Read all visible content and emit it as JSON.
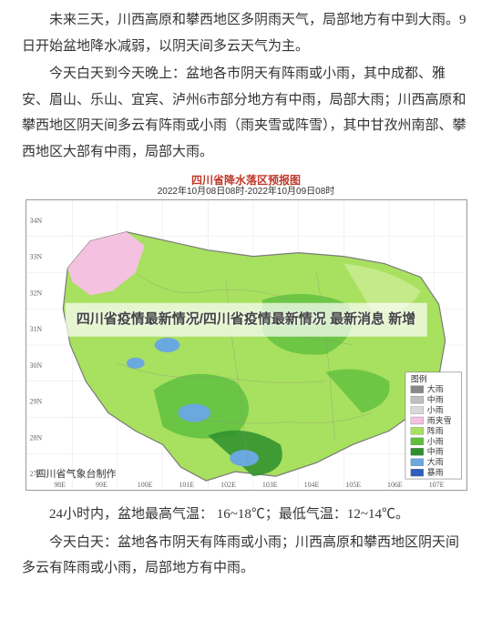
{
  "paragraphs": {
    "p1": "未来三天，川西高原和攀西地区多阴雨天气，局部地方有中到大雨。9日开始盆地降水减弱，以阴天间多云天气为主。",
    "p2": "今天白天到今天晚上：盆地各市阴天有阵雨或小雨，其中成都、雅安、眉山、乐山、宜宾、泸州6市部分地方有中雨，局部大雨；川西高原和攀西地区阴天间多云有阵雨或小雨（雨夹雪或阵雪），其中甘孜州南部、攀西地区大部有中雨，局部大雨。",
    "p3": "24小时内，盆地最高气温： 16~18℃；最低气温：12~14℃。",
    "p4": "今天白天：盆地各市阴天有阵雨或小雨；川西高原和攀西地区阴天间多云有阵雨或小雨，局部地方有中雨。"
  },
  "map": {
    "title": "四川省降水落区预报图",
    "period": "2022年10月08日08时-2022年10月09日08时",
    "watermark": "四川省气象台制作",
    "legend_title": "图例",
    "legend": [
      {
        "label": "大雨",
        "color": "#888888"
      },
      {
        "label": "中雨",
        "color": "#bfbfbf"
      },
      {
        "label": "小雨",
        "color": "#d9d9d9"
      },
      {
        "label": "雨夹雪",
        "color": "#f4c2e0"
      },
      {
        "label": "阵雨",
        "color": "#a8e05f"
      },
      {
        "label": "小雨",
        "color": "#5fbf3f"
      },
      {
        "label": "中雨",
        "color": "#2d8f2d"
      },
      {
        "label": "大雨",
        "color": "#6aa8e0"
      },
      {
        "label": "暴雨",
        "color": "#2d5fbf"
      }
    ],
    "colors": {
      "base": "#a8e05f",
      "light": "#c8eb8f",
      "mid": "#5fbf3f",
      "dark": "#2d8f2d",
      "blue": "#6aa8e0",
      "snow": "#f4c2e0",
      "border": "#7a7a7a",
      "grid": "#cccccc"
    },
    "axis": {
      "lon": [
        "98E",
        "99E",
        "100E",
        "101E",
        "102E",
        "103E",
        "104E",
        "105E",
        "106E",
        "107E"
      ],
      "lat": [
        "34N",
        "33N",
        "32N",
        "31N",
        "30N",
        "29N",
        "28N",
        "27N"
      ]
    }
  },
  "overlay": "四川省疫情最新情况/四川省疫情最新情况 最新消息 新增"
}
